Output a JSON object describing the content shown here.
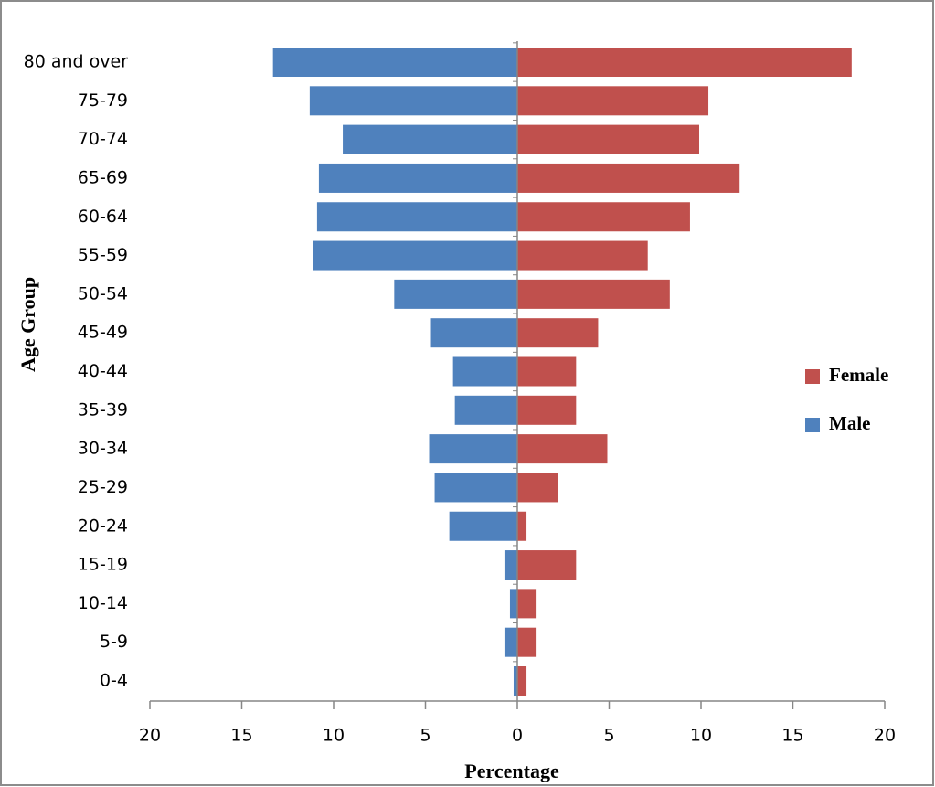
{
  "chart_data": {
    "type": "bar",
    "x_label": "Percentage",
    "y_label": "Age Group",
    "categories": [
      "0-4",
      "5-9",
      "10-14",
      "15-19",
      "20-24",
      "25-29",
      "30-34",
      "35-39",
      "40-44",
      "45-49",
      "50-54",
      "55-59",
      "60-64",
      "65-69",
      "70-74",
      "75-79",
      "80  and over"
    ],
    "series": [
      {
        "name": "Female",
        "color": "#c0504d",
        "values": [
          0.5,
          1.0,
          1.0,
          3.2,
          0.5,
          2.2,
          4.9,
          3.2,
          3.2,
          4.4,
          8.3,
          7.1,
          9.4,
          12.1,
          9.9,
          10.4,
          18.2
        ]
      },
      {
        "name": "Male",
        "color": "#4f81bd",
        "values": [
          -0.2,
          -0.7,
          -0.4,
          -0.7,
          -3.7,
          -4.5,
          -4.8,
          -3.4,
          -3.5,
          -4.7,
          -6.7,
          -11.1,
          -10.9,
          -10.8,
          -9.5,
          -11.3,
          -13.3
        ]
      }
    ],
    "xlim": [
      -20,
      20
    ],
    "xticks": [
      {
        "value": -20,
        "label": "20"
      },
      {
        "value": -15,
        "label": "15"
      },
      {
        "value": -10,
        "label": "10"
      },
      {
        "value": -5,
        "label": "5"
      },
      0,
      5,
      10,
      15,
      20
    ],
    "legend": "right"
  }
}
